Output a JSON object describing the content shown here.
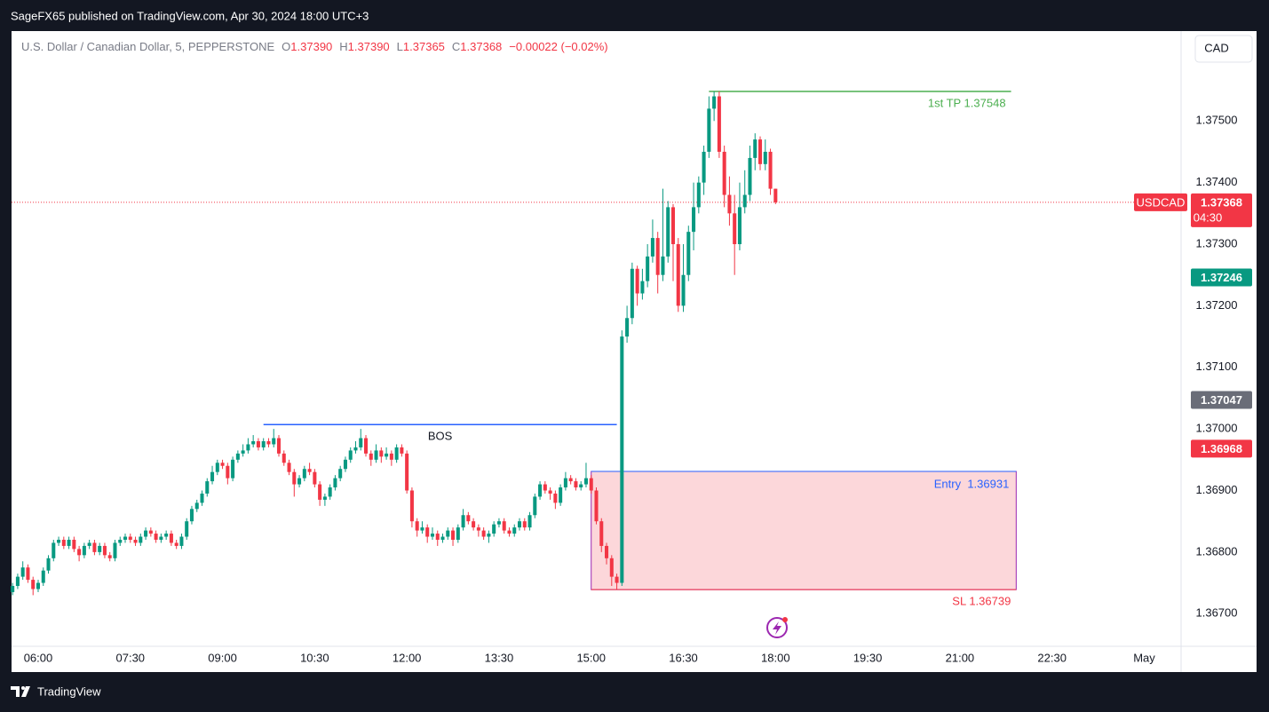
{
  "header": {
    "title": "SageFX65 published on TradingView.com, Apr 30, 2024 18:00 UTC+3"
  },
  "footer": {
    "brand": "TradingView"
  },
  "currency_button": "CAD",
  "chart_data": {
    "type": "candlestick",
    "legend": {
      "symbol": "U.S. Dollar / Canadian Dollar, 5, PEPPERSTONE",
      "fields": [
        {
          "key": "O",
          "value": {
            "value": 1.3739,
            "label": "1.37390"
          }
        },
        {
          "key": "H",
          "value": {
            "value": 1.3739,
            "label": "1.37390"
          }
        },
        {
          "key": "L",
          "value": {
            "value": 1.37365,
            "label": "1.37365"
          }
        },
        {
          "key": "C",
          "value": {
            "value": 1.37368,
            "label": "1.37368"
          }
        }
      ],
      "change": "−0.00022 (−0.02%)"
    },
    "up_color": "#089981",
    "down_color": "#f23645",
    "x": [
      335,
      340,
      345,
      350,
      355,
      360,
      365,
      370,
      375,
      380,
      385,
      390,
      395,
      400,
      405,
      410,
      415,
      420,
      425,
      430,
      435,
      440,
      445,
      450,
      455,
      460,
      465,
      470,
      475,
      480,
      485,
      490,
      495,
      500,
      505,
      510,
      515,
      520,
      525,
      530,
      535,
      540,
      545,
      550,
      555,
      560,
      565,
      570,
      575,
      580,
      585,
      590,
      595,
      600,
      605,
      610,
      615,
      620,
      625,
      630,
      635,
      640,
      645,
      650,
      655,
      660,
      665,
      670,
      675,
      680,
      685,
      690,
      695,
      700,
      705,
      710,
      715,
      720,
      725,
      730,
      735,
      740,
      745,
      750,
      755,
      760,
      765,
      770,
      775,
      780,
      785,
      790,
      795,
      800,
      805,
      810,
      815,
      820,
      825,
      830,
      835,
      840,
      845,
      850,
      855,
      860,
      865,
      870,
      875,
      880,
      885,
      890,
      895,
      900,
      905,
      910,
      915,
      920,
      925,
      930,
      935,
      940,
      945,
      950,
      955,
      960,
      965,
      970,
      975,
      980,
      985,
      990,
      995,
      1000,
      1005,
      1010,
      1015,
      1020,
      1025,
      1030,
      1035,
      1040,
      1045,
      1050,
      1055,
      1060,
      1065,
      1070,
      1075,
      1080
    ],
    "ohlc": [
      [
        1.36735,
        1.3675,
        1.3673,
        1.36745
      ],
      [
        1.36745,
        1.36765,
        1.3674,
        1.3676
      ],
      [
        1.3676,
        1.36785,
        1.36755,
        1.36775
      ],
      [
        1.36775,
        1.3678,
        1.3675,
        1.36755
      ],
      [
        1.36755,
        1.3676,
        1.3673,
        1.3674
      ],
      [
        1.3674,
        1.36755,
        1.36735,
        1.3675
      ],
      [
        1.3675,
        1.36775,
        1.36745,
        1.3677
      ],
      [
        1.3677,
        1.36795,
        1.36765,
        1.3679
      ],
      [
        1.3679,
        1.3682,
        1.36785,
        1.36815
      ],
      [
        1.36815,
        1.36825,
        1.3681,
        1.3682
      ],
      [
        1.3682,
        1.36825,
        1.36805,
        1.3681
      ],
      [
        1.3681,
        1.36825,
        1.36805,
        1.3682
      ],
      [
        1.3682,
        1.36825,
        1.368,
        1.36805
      ],
      [
        1.36805,
        1.3681,
        1.36785,
        1.36795
      ],
      [
        1.36795,
        1.36815,
        1.3679,
        1.3681
      ],
      [
        1.3681,
        1.3682,
        1.36805,
        1.36815
      ],
      [
        1.36815,
        1.3682,
        1.36795,
        1.368
      ],
      [
        1.368,
        1.36815,
        1.36795,
        1.3681
      ],
      [
        1.3681,
        1.36815,
        1.3679,
        1.36795
      ],
      [
        1.36795,
        1.368,
        1.36785,
        1.3679
      ],
      [
        1.3679,
        1.3682,
        1.36785,
        1.36815
      ],
      [
        1.36815,
        1.36825,
        1.3681,
        1.3682
      ],
      [
        1.3682,
        1.3683,
        1.36815,
        1.36825
      ],
      [
        1.36825,
        1.3683,
        1.36815,
        1.3682
      ],
      [
        1.3682,
        1.36825,
        1.3681,
        1.36815
      ],
      [
        1.36815,
        1.3683,
        1.3681,
        1.36825
      ],
      [
        1.36825,
        1.3684,
        1.3682,
        1.36835
      ],
      [
        1.36835,
        1.3684,
        1.36825,
        1.3683
      ],
      [
        1.3683,
        1.36835,
        1.36815,
        1.3682
      ],
      [
        1.3682,
        1.3683,
        1.36815,
        1.36825
      ],
      [
        1.36825,
        1.36835,
        1.3682,
        1.3683
      ],
      [
        1.3683,
        1.36835,
        1.3681,
        1.36815
      ],
      [
        1.36815,
        1.3682,
        1.36805,
        1.3681
      ],
      [
        1.3681,
        1.3683,
        1.36805,
        1.36825
      ],
      [
        1.36825,
        1.36855,
        1.3682,
        1.3685
      ],
      [
        1.3685,
        1.36875,
        1.36845,
        1.3687
      ],
      [
        1.3687,
        1.36885,
        1.36865,
        1.3688
      ],
      [
        1.3688,
        1.369,
        1.36875,
        1.36895
      ],
      [
        1.36895,
        1.3692,
        1.3689,
        1.36915
      ],
      [
        1.36915,
        1.3694,
        1.3691,
        1.3693
      ],
      [
        1.3693,
        1.3695,
        1.36925,
        1.36945
      ],
      [
        1.36945,
        1.3695,
        1.36935,
        1.3694
      ],
      [
        1.3694,
        1.36945,
        1.3691,
        1.3692
      ],
      [
        1.3692,
        1.36955,
        1.36915,
        1.3695
      ],
      [
        1.3695,
        1.36965,
        1.36945,
        1.3696
      ],
      [
        1.3696,
        1.36975,
        1.36955,
        1.36965
      ],
      [
        1.36965,
        1.36985,
        1.3696,
        1.36975
      ],
      [
        1.36975,
        1.3699,
        1.3697,
        1.3698
      ],
      [
        1.3698,
        1.36985,
        1.36965,
        1.3697
      ],
      [
        1.3697,
        1.36985,
        1.36965,
        1.3698
      ],
      [
        1.3698,
        1.36985,
        1.3697,
        1.36975
      ],
      [
        1.36975,
        1.37,
        1.3697,
        1.36985
      ],
      [
        1.36985,
        1.3699,
        1.36955,
        1.3696
      ],
      [
        1.3696,
        1.36965,
        1.3694,
        1.36945
      ],
      [
        1.36945,
        1.3695,
        1.36925,
        1.3693
      ],
      [
        1.3693,
        1.36935,
        1.3689,
        1.3691
      ],
      [
        1.3691,
        1.36925,
        1.36905,
        1.3692
      ],
      [
        1.3692,
        1.3694,
        1.36915,
        1.36935
      ],
      [
        1.36935,
        1.36945,
        1.36925,
        1.3693
      ],
      [
        1.3693,
        1.36935,
        1.36905,
        1.3691
      ],
      [
        1.3691,
        1.36915,
        1.36875,
        1.36885
      ],
      [
        1.36885,
        1.36895,
        1.36875,
        1.3689
      ],
      [
        1.3689,
        1.3691,
        1.36885,
        1.36905
      ],
      [
        1.36905,
        1.36925,
        1.369,
        1.3692
      ],
      [
        1.3692,
        1.3694,
        1.36915,
        1.36935
      ],
      [
        1.36935,
        1.36955,
        1.3693,
        1.3695
      ],
      [
        1.3695,
        1.3697,
        1.36945,
        1.36965
      ],
      [
        1.36965,
        1.3698,
        1.3696,
        1.3697
      ],
      [
        1.3697,
        1.37,
        1.36965,
        1.36985
      ],
      [
        1.36985,
        1.3699,
        1.36955,
        1.3696
      ],
      [
        1.3696,
        1.36965,
        1.3694,
        1.3695
      ],
      [
        1.3695,
        1.36975,
        1.36945,
        1.36965
      ],
      [
        1.36965,
        1.3697,
        1.36945,
        1.36955
      ],
      [
        1.36955,
        1.3697,
        1.3695,
        1.3696
      ],
      [
        1.3696,
        1.36965,
        1.3694,
        1.3695
      ],
      [
        1.3695,
        1.36975,
        1.36945,
        1.3697
      ],
      [
        1.3697,
        1.36975,
        1.36955,
        1.3696
      ],
      [
        1.3696,
        1.36965,
        1.36895,
        1.369
      ],
      [
        1.369,
        1.36905,
        1.3684,
        1.3685
      ],
      [
        1.3685,
        1.36855,
        1.36825,
        1.36835
      ],
      [
        1.36835,
        1.3685,
        1.3683,
        1.3684
      ],
      [
        1.3684,
        1.36845,
        1.36815,
        1.36825
      ],
      [
        1.36825,
        1.3684,
        1.3682,
        1.3683
      ],
      [
        1.3683,
        1.36835,
        1.3681,
        1.3682
      ],
      [
        1.3682,
        1.3683,
        1.36815,
        1.36825
      ],
      [
        1.36825,
        1.3684,
        1.3682,
        1.36835
      ],
      [
        1.36835,
        1.3684,
        1.3681,
        1.3682
      ],
      [
        1.3682,
        1.36845,
        1.36815,
        1.3684
      ],
      [
        1.3684,
        1.3687,
        1.36835,
        1.3686
      ],
      [
        1.3686,
        1.36865,
        1.36845,
        1.3685
      ],
      [
        1.3685,
        1.36855,
        1.36835,
        1.3684
      ],
      [
        1.3684,
        1.36845,
        1.36825,
        1.36835
      ],
      [
        1.36835,
        1.3684,
        1.3682,
        1.36825
      ],
      [
        1.36825,
        1.36835,
        1.36815,
        1.3683
      ],
      [
        1.3683,
        1.3685,
        1.36825,
        1.36845
      ],
      [
        1.36845,
        1.36855,
        1.3684,
        1.3685
      ],
      [
        1.3685,
        1.36855,
        1.3683,
        1.36835
      ],
      [
        1.36835,
        1.3684,
        1.36825,
        1.3683
      ],
      [
        1.3683,
        1.36845,
        1.36825,
        1.3684
      ],
      [
        1.3684,
        1.36855,
        1.36835,
        1.3685
      ],
      [
        1.3685,
        1.36855,
        1.36835,
        1.3684
      ],
      [
        1.3684,
        1.36865,
        1.36835,
        1.3686
      ],
      [
        1.3686,
        1.36895,
        1.36855,
        1.3689
      ],
      [
        1.3689,
        1.36915,
        1.36885,
        1.3691
      ],
      [
        1.3691,
        1.36915,
        1.36895,
        1.369
      ],
      [
        1.369,
        1.36905,
        1.36885,
        1.36895
      ],
      [
        1.36895,
        1.369,
        1.3687,
        1.3688
      ],
      [
        1.3688,
        1.3691,
        1.36875,
        1.36905
      ],
      [
        1.36905,
        1.3693,
        1.369,
        1.3692
      ],
      [
        1.3692,
        1.36925,
        1.3691,
        1.36915
      ],
      [
        1.36915,
        1.3692,
        1.369,
        1.36905
      ],
      [
        1.36905,
        1.36915,
        1.369,
        1.3691
      ],
      [
        1.3691,
        1.36945,
        1.36905,
        1.3692
      ],
      [
        1.3692,
        1.36925,
        1.36895,
        1.369
      ],
      [
        1.369,
        1.36905,
        1.36845,
        1.3685
      ],
      [
        1.3685,
        1.36855,
        1.368,
        1.3681
      ],
      [
        1.3681,
        1.36815,
        1.3678,
        1.3679
      ],
      [
        1.3679,
        1.36795,
        1.36745,
        1.3676
      ],
      [
        1.3676,
        1.36765,
        1.36739,
        1.3675
      ],
      [
        1.3675,
        1.3716,
        1.36745,
        1.3715
      ],
      [
        1.3715,
        1.372,
        1.3714,
        1.3718
      ],
      [
        1.3718,
        1.3727,
        1.3717,
        1.3726
      ],
      [
        1.3726,
        1.37265,
        1.372,
        1.3722
      ],
      [
        1.3722,
        1.3726,
        1.3721,
        1.3724
      ],
      [
        1.3724,
        1.373,
        1.3723,
        1.3728
      ],
      [
        1.3728,
        1.3734,
        1.3727,
        1.3731
      ],
      [
        1.3731,
        1.3732,
        1.3722,
        1.3725
      ],
      [
        1.3725,
        1.3739,
        1.3724,
        1.3728
      ],
      [
        1.3728,
        1.3737,
        1.3727,
        1.3736
      ],
      [
        1.3736,
        1.37365,
        1.3724,
        1.373
      ],
      [
        1.373,
        1.3731,
        1.3719,
        1.372
      ],
      [
        1.372,
        1.373,
        1.3719,
        1.3725
      ],
      [
        1.3725,
        1.3733,
        1.3724,
        1.3732
      ],
      [
        1.3732,
        1.374,
        1.3729,
        1.3736
      ],
      [
        1.3736,
        1.3741,
        1.3735,
        1.374
      ],
      [
        1.374,
        1.3746,
        1.3738,
        1.3745
      ],
      [
        1.3745,
        1.3754,
        1.3744,
        1.3752
      ],
      [
        1.3752,
        1.37548,
        1.375,
        1.3754
      ],
      [
        1.3754,
        1.37548,
        1.3744,
        1.3745
      ],
      [
        1.3745,
        1.3746,
        1.3736,
        1.3738
      ],
      [
        1.3738,
        1.3741,
        1.3733,
        1.3735
      ],
      [
        1.3735,
        1.3738,
        1.3725,
        1.373
      ],
      [
        1.373,
        1.374,
        1.3729,
        1.3736
      ],
      [
        1.3736,
        1.3742,
        1.3735,
        1.3738
      ],
      [
        1.3738,
        1.3746,
        1.3737,
        1.3744
      ],
      [
        1.3744,
        1.3748,
        1.3742,
        1.3747
      ],
      [
        1.3747,
        1.37475,
        1.3742,
        1.3743
      ],
      [
        1.3743,
        1.3747,
        1.3742,
        1.3745
      ],
      [
        1.3745,
        1.37455,
        1.3738,
        1.3739
      ],
      [
        1.3739,
        1.3739,
        1.37365,
        1.37368
      ]
    ],
    "xlim": [
      334,
      1476
    ],
    "xticks": [
      {
        "value": 360,
        "label": "06:00"
      },
      {
        "value": 450,
        "label": "07:30"
      },
      {
        "value": 540,
        "label": "09:00"
      },
      {
        "value": 630,
        "label": "10:30"
      },
      {
        "value": 720,
        "label": "12:00"
      },
      {
        "value": 810,
        "label": "13:30"
      },
      {
        "value": 900,
        "label": "15:00"
      },
      {
        "value": 990,
        "label": "16:30"
      },
      {
        "value": 1080,
        "label": "18:00"
      },
      {
        "value": 1170,
        "label": "19:30"
      },
      {
        "value": 1260,
        "label": "21:00"
      },
      {
        "value": 1350,
        "label": "22:30"
      },
      {
        "value": 1440,
        "label": "May"
      }
    ],
    "ylim": [
      1.36647,
      1.37646
    ],
    "yticks": [
      {
        "value": 1.367,
        "label": "1.36700"
      },
      {
        "value": 1.368,
        "label": "1.36800"
      },
      {
        "value": 1.369,
        "label": "1.36900"
      },
      {
        "value": 1.37,
        "label": "1.37000"
      },
      {
        "value": 1.371,
        "label": "1.37100"
      },
      {
        "value": 1.372,
        "label": "1.37200"
      },
      {
        "value": 1.373,
        "label": "1.37300"
      },
      {
        "value": 1.374,
        "label": "1.37400"
      },
      {
        "value": 1.375,
        "label": "1.37500"
      }
    ],
    "grid": false,
    "last_price": {
      "symbol": "USDCAD",
      "value": 1.37368,
      "label": "1.37368",
      "countdown": "04:30",
      "color": "#f23645"
    },
    "price_labels": [
      {
        "value": 1.37246,
        "label": "1.37246",
        "color": "#089981"
      },
      {
        "value": 1.37047,
        "label": "1.37047",
        "color": "#6a6d78"
      },
      {
        "value": 1.36968,
        "label": "1.36968",
        "color": "#f23645"
      }
    ],
    "annotations": [
      {
        "text": "BOS",
        "price": 1.37007,
        "x": [
          580,
          925
        ],
        "color": "#2962ff"
      },
      {
        "text": "1st TP 1.37548",
        "price": 1.37548,
        "x": [
          1015,
          1310
        ],
        "color": "#4caf50"
      }
    ],
    "position": {
      "entry": {
        "label": "Entry  1.36931",
        "price": 1.36931,
        "color": "#2962ff"
      },
      "stop": {
        "label": "SL 1.36739",
        "price": 1.36739,
        "color": "#f23645"
      },
      "x": [
        900,
        1315
      ]
    }
  }
}
